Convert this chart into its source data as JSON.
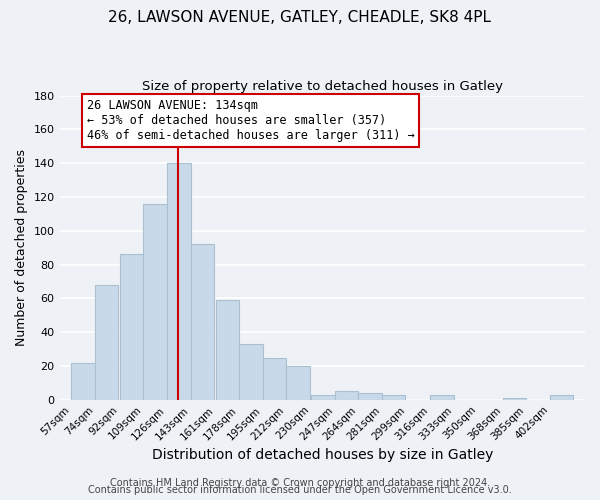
{
  "title1": "26, LAWSON AVENUE, GATLEY, CHEADLE, SK8 4PL",
  "title2": "Size of property relative to detached houses in Gatley",
  "xlabel": "Distribution of detached houses by size in Gatley",
  "ylabel": "Number of detached properties",
  "bar_color": "#c8daea",
  "bar_edgecolor": "#aabfcf",
  "bin_labels": [
    "57sqm",
    "74sqm",
    "92sqm",
    "109sqm",
    "126sqm",
    "143sqm",
    "161sqm",
    "178sqm",
    "195sqm",
    "212sqm",
    "230sqm",
    "247sqm",
    "264sqm",
    "281sqm",
    "299sqm",
    "316sqm",
    "333sqm",
    "350sqm",
    "368sqm",
    "385sqm",
    "402sqm"
  ],
  "bin_edges": [
    57,
    74,
    92,
    109,
    126,
    143,
    161,
    178,
    195,
    212,
    230,
    247,
    264,
    281,
    299,
    316,
    333,
    350,
    368,
    385,
    402
  ],
  "bin_width": 17,
  "counts": [
    22,
    68,
    86,
    116,
    140,
    92,
    59,
    33,
    25,
    20,
    3,
    5,
    4,
    3,
    0,
    3,
    0,
    0,
    1,
    0,
    3
  ],
  "property_size": 134,
  "vline_color": "#cc0000",
  "annotation_text": "26 LAWSON AVENUE: 134sqm\n← 53% of detached houses are smaller (357)\n46% of semi-detached houses are larger (311) →",
  "annotation_box_edgecolor": "#cc0000",
  "annotation_box_facecolor": "#ffffff",
  "ylim": [
    0,
    180
  ],
  "yticks": [
    0,
    20,
    40,
    60,
    80,
    100,
    120,
    140,
    160,
    180
  ],
  "footer1": "Contains HM Land Registry data © Crown copyright and database right 2024.",
  "footer2": "Contains public sector information licensed under the Open Government Licence v3.0.",
  "background_color": "#eef2f7",
  "grid_color": "#ffffff",
  "title1_fontsize": 11,
  "title2_fontsize": 9.5,
  "xlabel_fontsize": 10,
  "ylabel_fontsize": 9,
  "tick_fontsize": 7.5,
  "footer_fontsize": 7,
  "annotation_fontsize": 8.5
}
